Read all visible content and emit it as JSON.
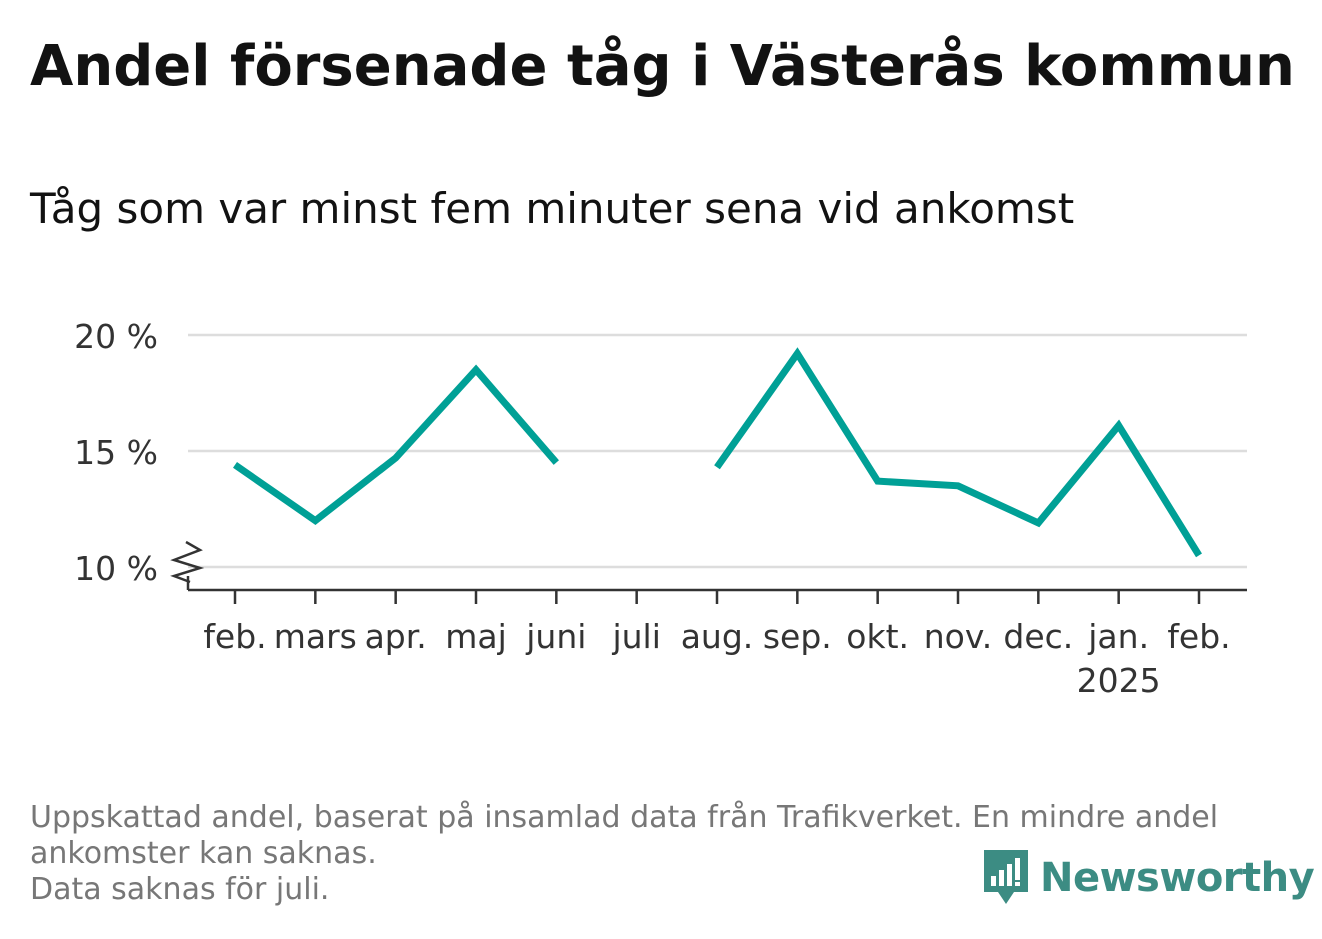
{
  "title": "Andel försenade tåg i Västerås kommun",
  "subtitle": "Tåg som var minst fem minuter sena vid ankomst",
  "footnote": {
    "line1": "Uppskattad andel, baserat på insamlad data från Trafikverket. En mindre andel",
    "line2": "ankomster kan saknas.",
    "line3": "Data saknas för juli."
  },
  "logo": {
    "text": "Newsworthy",
    "icon": "newsworthy-logo-icon",
    "color": "#3c8c83"
  },
  "chart_data": {
    "type": "line",
    "categories": [
      "feb.",
      "mars",
      "apr.",
      "maj",
      "juni",
      "juli",
      "aug.",
      "sep.",
      "okt.",
      "nov.",
      "dec.",
      "jan.",
      "feb."
    ],
    "year_label": {
      "category_index": 11,
      "text": "2025"
    },
    "series": [
      {
        "values": [
          14.4,
          12.0,
          14.7,
          18.5,
          14.5,
          null,
          14.3,
          19.2,
          13.7,
          13.5,
          11.9,
          16.1,
          10.5
        ],
        "color": "#00a096"
      }
    ],
    "y_ticks": [
      10,
      15,
      20
    ],
    "y_tick_labels": [
      "10 %",
      "15 %",
      "20 %"
    ],
    "ylim": [
      10,
      20
    ],
    "y_axis_break": true,
    "grid": true,
    "grid_color": "#dddddd",
    "xlabel": "",
    "ylabel": ""
  }
}
